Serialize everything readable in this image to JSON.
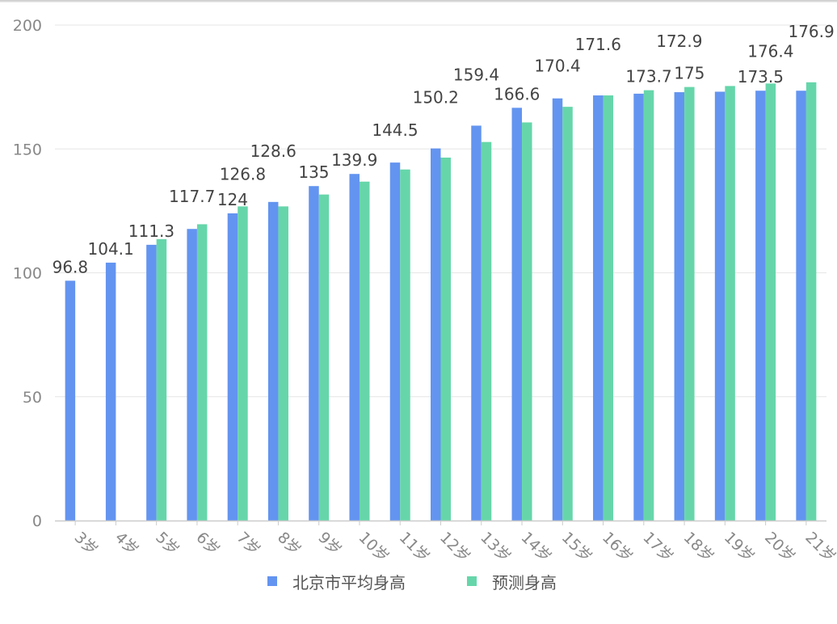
{
  "legend": {
    "items": [
      {
        "label": "北京市平均身高",
        "color": "#6394F0"
      },
      {
        "label": "预测身高",
        "color": "#66D6AA"
      }
    ]
  },
  "chart_data": {
    "type": "bar",
    "title": "",
    "xlabel": "",
    "ylabel": "",
    "ylim": [
      0,
      200
    ],
    "yticks": [
      0,
      50,
      100,
      150,
      200
    ],
    "grid": true,
    "legend_position": "bottom",
    "categories": [
      "3岁",
      "4岁",
      "5岁",
      "6岁",
      "7岁",
      "8岁",
      "9岁",
      "10岁",
      "11岁",
      "12岁",
      "13岁",
      "14岁",
      "15岁",
      "16岁",
      "17岁",
      "18岁",
      "19岁",
      "20岁",
      "21岁"
    ],
    "series": [
      {
        "name": "北京市平均身高",
        "color": "#6394F0",
        "values": [
          96.8,
          104.1,
          111.3,
          117.7,
          124,
          128.6,
          135,
          139.9,
          144.5,
          150.2,
          159.4,
          166.6,
          170.4,
          171.6,
          172.3,
          172.9,
          173.1,
          173.5,
          173.5
        ]
      },
      {
        "name": "预测身高",
        "color": "#66D6AA",
        "values": [
          null,
          null,
          113.6,
          119.6,
          126.8,
          126.8,
          131.6,
          136.8,
          141.7,
          146.5,
          152.8,
          160.7,
          167,
          171.6,
          173.7,
          175,
          175.4,
          176.4,
          176.9
        ]
      }
    ],
    "annotations": [
      {
        "text": "96.8",
        "category": "3岁",
        "series": 0
      },
      {
        "text": "104.1",
        "category": "4岁",
        "series": 0
      },
      {
        "text": "111.3",
        "category": "5岁",
        "series": 0
      },
      {
        "text": "117.7",
        "category": "6岁",
        "series": 0
      },
      {
        "text": "124",
        "category": "7岁",
        "series": 0
      },
      {
        "text": "126.8",
        "category": "7岁",
        "series": 1
      },
      {
        "text": "128.6",
        "category": "8岁",
        "series": 0
      },
      {
        "text": "135",
        "category": "9岁",
        "series": 0
      },
      {
        "text": "139.9",
        "category": "10岁",
        "series": 0
      },
      {
        "text": "144.5",
        "category": "11岁",
        "series": 0
      },
      {
        "text": "150.2",
        "category": "12岁",
        "series": 0
      },
      {
        "text": "159.4",
        "category": "13岁",
        "series": 0
      },
      {
        "text": "166.6",
        "category": "14岁",
        "series": 0
      },
      {
        "text": "170.4",
        "category": "15岁",
        "series": 0
      },
      {
        "text": "171.6",
        "category": "16岁",
        "series": 0
      },
      {
        "text": "173.7",
        "category": "17岁",
        "series": 1
      },
      {
        "text": "172.9",
        "category": "18岁",
        "series": 0
      },
      {
        "text": "175",
        "category": "18岁",
        "series": 1
      },
      {
        "text": "173.5",
        "category": "20岁",
        "series": 0
      },
      {
        "text": "176.4",
        "category": "20岁",
        "series": 1
      },
      {
        "text": "176.9",
        "category": "21岁",
        "series": 1
      }
    ]
  }
}
